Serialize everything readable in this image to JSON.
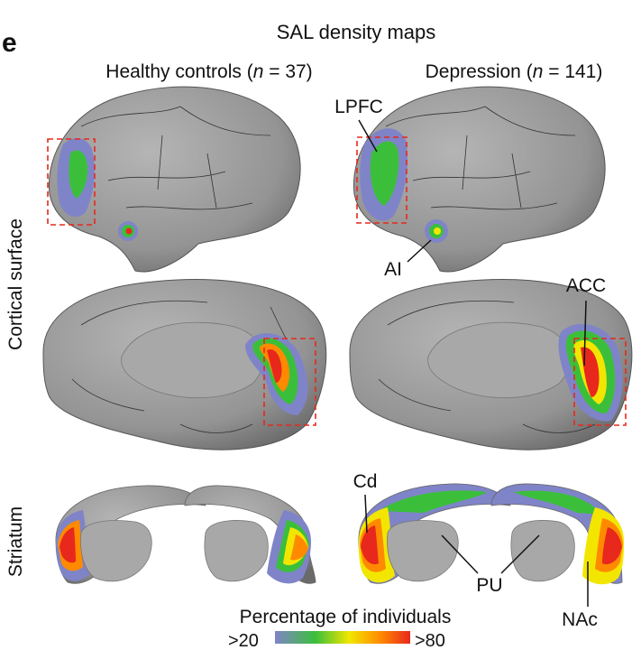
{
  "panel_letter": "e",
  "title": "SAL density maps",
  "columns": {
    "left": {
      "label_prefix": "Healthy controls (",
      "n_symbol": "n",
      "label_suffix": " = 37)"
    },
    "right": {
      "label_prefix": "Depression (",
      "n_symbol": "n",
      "label_suffix": " = 141)"
    }
  },
  "rows": {
    "cortical": "Cortical surface",
    "striatum": "Striatum"
  },
  "annotations": {
    "lpfc": "LPFC",
    "ai": "AI",
    "acc": "ACC",
    "cd": "Cd",
    "pu": "PU",
    "nac": "NAc"
  },
  "colorbar": {
    "title": "Percentage of individuals",
    "min_label": ">20",
    "max_label": ">80",
    "colors": [
      "#7f84c8",
      "#3bbf3b",
      "#f2e600",
      "#ff8a00",
      "#e8281c"
    ]
  },
  "colors": {
    "brain": "#9a9a9a",
    "brain_dark": "#6f6f6f",
    "highlight_box": "#e8281c",
    "low": "#7f84c8",
    "mid": "#3bbf3b",
    "yellow": "#f2e600",
    "high": "#e8281c"
  }
}
